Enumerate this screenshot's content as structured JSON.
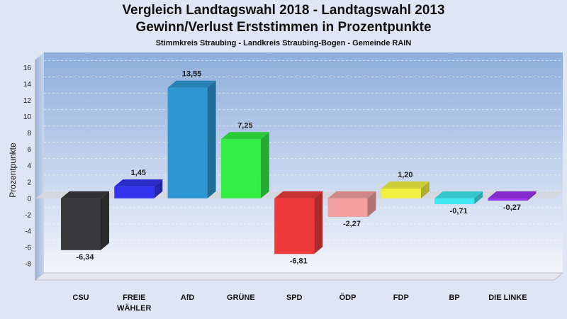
{
  "chart_data": {
    "type": "bar",
    "title": "Vergleich Landtagswahl 2018 - Landtagswahl 2013",
    "title_line2": "Gewinn/Verlust Erststimmen in Prozentpunkte",
    "subtitle": "Stimmkreis Straubing - Landkreis Straubing-Bogen - Gemeinde RAIN",
    "ylabel": "Prozentpunkte",
    "xlabel": "",
    "ylim": [
      -10,
      17
    ],
    "yticks": [
      16,
      14,
      12,
      10,
      8,
      6,
      4,
      2,
      0,
      -2,
      -4,
      -6,
      -8
    ],
    "grid": true,
    "categories": [
      [
        "CSU"
      ],
      [
        "FREIE",
        "WÄHLER"
      ],
      [
        "AfD"
      ],
      [
        "GRÜNE"
      ],
      [
        "SPD"
      ],
      [
        "ÖDP"
      ],
      [
        "FDP"
      ],
      [
        "BP"
      ],
      [
        "DIE LINKE"
      ]
    ],
    "values": [
      -6.34,
      1.45,
      13.55,
      7.25,
      -6.81,
      -2.27,
      1.2,
      -0.71,
      -0.27
    ],
    "value_labels": [
      "-6,34",
      "1,45",
      "13,55",
      "7,25",
      "-6,81",
      "-2,27",
      "1,20",
      "-0,71",
      "-0,27"
    ],
    "colors": [
      "#3a3a3c",
      "#3333ee",
      "#2f96d4",
      "#33ee44",
      "#ee3a3a",
      "#f4a0a0",
      "#f0f040",
      "#40e8f0",
      "#9933ee"
    ]
  }
}
